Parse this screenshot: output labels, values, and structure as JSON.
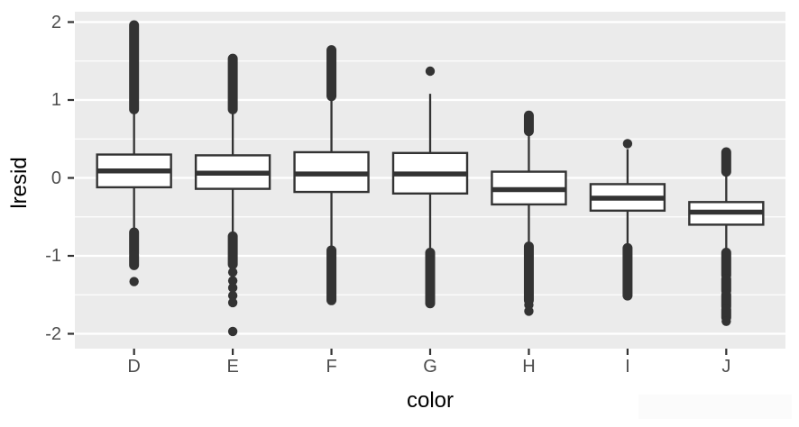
{
  "figure": {
    "background": "#ffffff",
    "panel_background": "#ebebeb",
    "gridline_color": "#ffffff",
    "box_line_color": "#333333",
    "tick_label_color": "#4d4d4d",
    "axis_title_color": "#000000"
  },
  "chart_data": {
    "type": "boxplot",
    "title": "",
    "xlabel": "color",
    "ylabel": "lresid",
    "categories": [
      "D",
      "E",
      "F",
      "G",
      "H",
      "I",
      "J"
    ],
    "ylim": [
      -2.2,
      2.15
    ],
    "yticks": [
      2,
      1,
      0,
      -1,
      -2
    ],
    "yticks_minor": [
      1.5,
      0.5,
      -0.5,
      -1.5
    ],
    "grid": "on",
    "legend": "none",
    "series": [
      {
        "name": "D",
        "q1": -0.12,
        "median": 0.09,
        "q3": 0.3,
        "whisker_low": -0.67,
        "whisker_high": 0.87,
        "outlier_segments": [
          [
            0.88,
            1.96
          ],
          [
            -0.7,
            -0.97
          ],
          [
            -1.0,
            -1.12
          ]
        ],
        "outlier_dots": [
          -1.33
        ]
      },
      {
        "name": "E",
        "q1": -0.14,
        "median": 0.06,
        "q3": 0.29,
        "whisker_low": -0.74,
        "whisker_high": 0.87,
        "outlier_segments": [
          [
            0.88,
            1.53
          ],
          [
            -0.75,
            -1.11
          ]
        ],
        "outlier_dots": [
          -1.21,
          -1.32,
          -1.41,
          -1.51,
          -1.6,
          -1.97
        ]
      },
      {
        "name": "F",
        "q1": -0.18,
        "median": 0.05,
        "q3": 0.33,
        "whisker_low": -0.92,
        "whisker_high": 1.04,
        "outlier_segments": [
          [
            1.05,
            1.64
          ],
          [
            -0.93,
            -1.57
          ]
        ],
        "outlier_dots": []
      },
      {
        "name": "G",
        "q1": -0.2,
        "median": 0.05,
        "q3": 0.32,
        "whisker_low": -0.95,
        "whisker_high": 1.08,
        "outlier_segments": [
          [
            -0.96,
            -1.61
          ]
        ],
        "outlier_dots": [
          1.37
        ]
      },
      {
        "name": "H",
        "q1": -0.34,
        "median": -0.15,
        "q3": 0.08,
        "whisker_low": -0.87,
        "whisker_high": 0.58,
        "outlier_segments": [
          [
            0.6,
            0.8
          ],
          [
            -0.88,
            -1.57
          ]
        ],
        "outlier_dots": [
          -1.63,
          -1.71
        ]
      },
      {
        "name": "I",
        "q1": -0.42,
        "median": -0.26,
        "q3": -0.08,
        "whisker_low": -0.89,
        "whisker_high": 0.37,
        "outlier_segments": [
          [
            -0.9,
            -1.51
          ]
        ],
        "outlier_dots": [
          0.44
        ]
      },
      {
        "name": "J",
        "q1": -0.6,
        "median": -0.44,
        "q3": -0.31,
        "whisker_low": -0.95,
        "whisker_high": 0.07,
        "outlier_segments": [
          [
            0.08,
            0.33
          ],
          [
            -0.96,
            -1.25
          ],
          [
            -1.3,
            -1.45
          ],
          [
            -1.5,
            -1.65
          ],
          [
            -1.69,
            -1.79
          ]
        ],
        "outlier_dots": [
          -1.84
        ]
      }
    ]
  }
}
